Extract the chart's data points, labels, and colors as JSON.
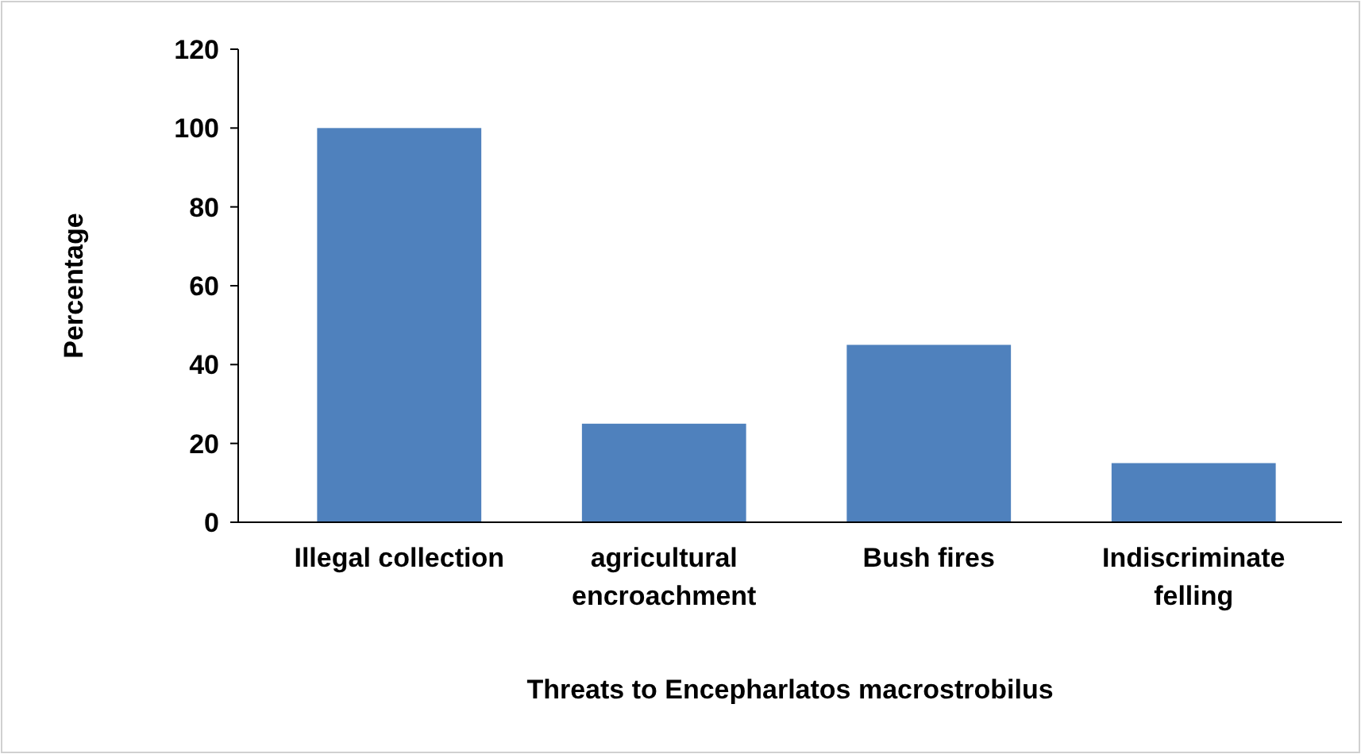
{
  "chart_data": {
    "type": "bar",
    "categories": [
      "Illegal collection",
      "agricultural encroachment",
      "Bush fires",
      "Indiscriminate felling"
    ],
    "values": [
      100,
      25,
      45,
      15
    ],
    "color": "#4f81bd",
    "ylabel": "Percentage",
    "xlabel": "Threats to Encepharlatos macrostrobilus",
    "ylim": [
      0,
      120
    ],
    "yticks": [
      0,
      20,
      40,
      60,
      80,
      100,
      120
    ],
    "grid": false
  }
}
